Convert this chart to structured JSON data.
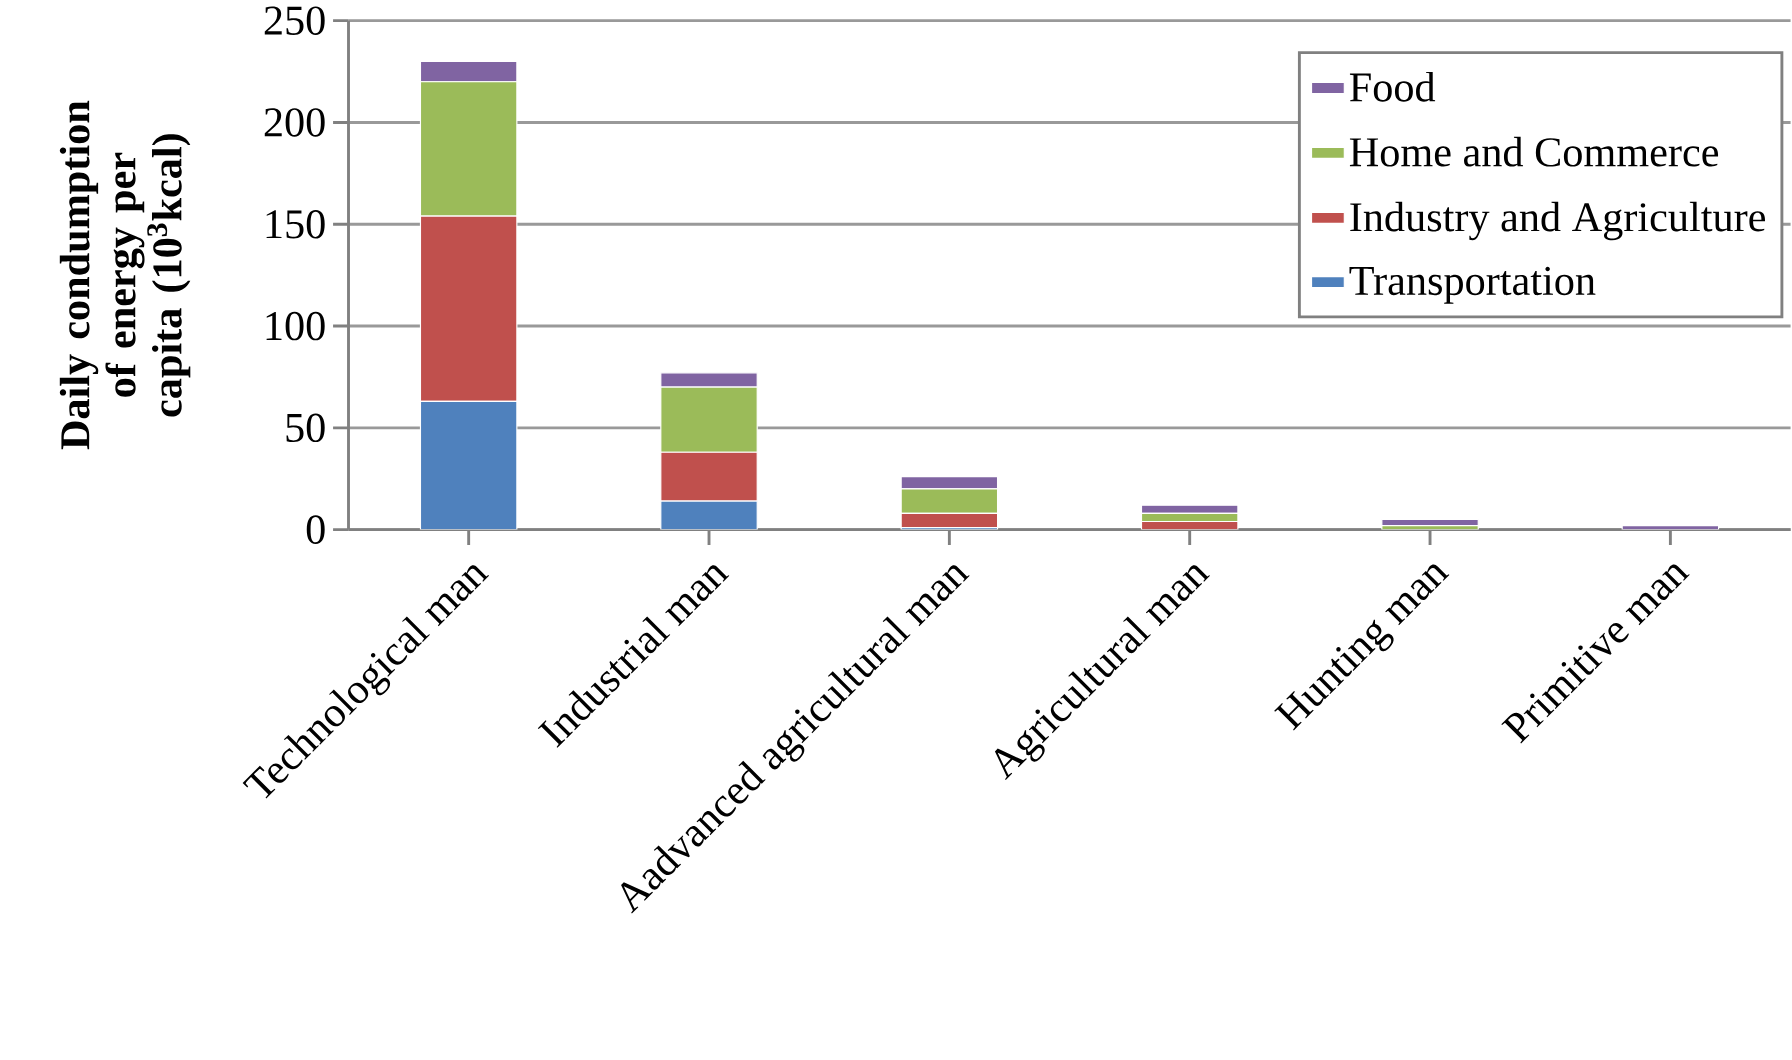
{
  "chart_data": {
    "type": "bar",
    "stacked": true,
    "ylabel": "Daily condumption of energy per capita (10$^{3}$kcal)",
    "categories": [
      "Technological man",
      "Industrial man",
      "Aadvanced agricultural man",
      "Agricultural man",
      "Hunting man",
      "Primitive man"
    ],
    "series": [
      {
        "name": "Transportation",
        "color": "#4f81bd",
        "values": [
          63,
          14,
          1,
          0,
          0,
          0
        ]
      },
      {
        "name": "Industry and Agriculture",
        "color": "#c0504d",
        "values": [
          91,
          24,
          7,
          4,
          0,
          0
        ]
      },
      {
        "name": "Home and Commerce",
        "color": "#9bbb59",
        "values": [
          66,
          32,
          12,
          4,
          2,
          0
        ]
      },
      {
        "name": "Food",
        "color": "#8064a2",
        "values": [
          10,
          7,
          6,
          4,
          3,
          2
        ]
      }
    ],
    "ylim": [
      0,
      250
    ],
    "yticks": [
      0,
      50,
      100,
      150,
      200,
      250
    ],
    "grid": "y",
    "legend": "top right"
  }
}
